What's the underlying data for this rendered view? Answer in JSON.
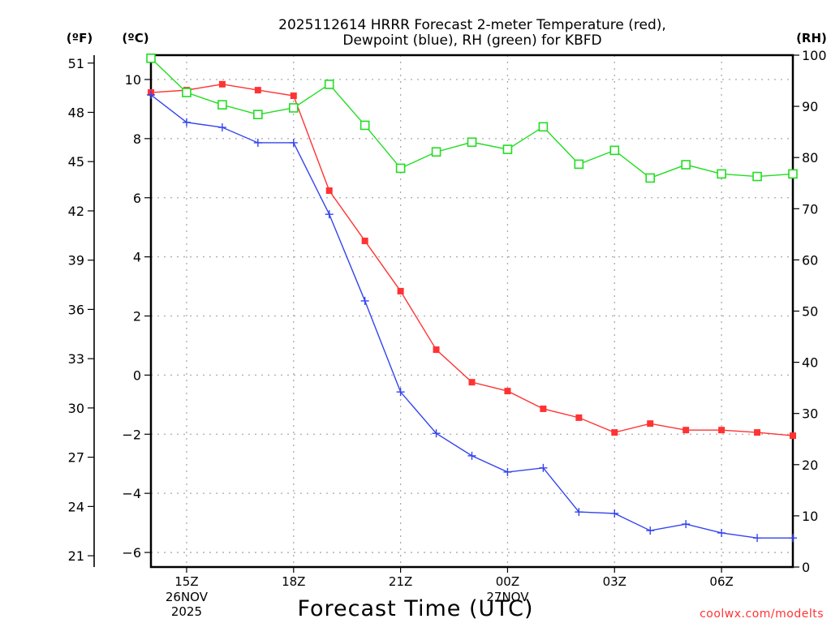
{
  "chart_data": {
    "type": "line",
    "title_line1": "2025112614 HRRR Forecast 2-meter Temperature (red),",
    "title_line2": "Dewpoint (blue), RH (green) for KBFD",
    "xlabel": "Forecast Time (UTC)",
    "credit": "coolwx.com/modelts",
    "units": {
      "fahrenheit": "(ºF)",
      "celsius": "(ºC)",
      "rh": "(RH)"
    },
    "x_hours": [
      "14Z",
      "15Z",
      "16Z",
      "17Z",
      "18Z",
      "19Z",
      "20Z",
      "21Z",
      "22Z",
      "23Z",
      "00Z",
      "01Z",
      "02Z",
      "03Z",
      "04Z",
      "05Z",
      "06Z",
      "07Z",
      "08Z"
    ],
    "x_ticks": [
      {
        "label": "15Z",
        "index": 1,
        "sub": [
          "26NOV",
          "2025"
        ]
      },
      {
        "label": "18Z",
        "index": 4,
        "sub": []
      },
      {
        "label": "21Z",
        "index": 7,
        "sub": []
      },
      {
        "label": "00Z",
        "index": 10,
        "sub": [
          "27NOV"
        ]
      },
      {
        "label": "03Z",
        "index": 13,
        "sub": []
      },
      {
        "label": "06Z",
        "index": 16,
        "sub": []
      }
    ],
    "y_celsius": {
      "range": [
        -6.5,
        10.8
      ],
      "ticks": [
        10,
        8,
        6,
        4,
        2,
        0,
        -2,
        -4,
        -6
      ]
    },
    "y_fahrenheit": {
      "ticks": [
        51,
        48,
        45,
        42,
        39,
        36,
        33,
        30,
        27,
        24,
        21
      ]
    },
    "y_rh": {
      "range": [
        0,
        100
      ],
      "ticks": [
        100,
        90,
        80,
        70,
        60,
        50,
        40,
        30,
        20,
        10,
        0
      ]
    },
    "grid": true,
    "series": [
      {
        "name": "Temperature",
        "axis": "celsius",
        "color": "#ff3333",
        "marker": "filled-square",
        "values": [
          9.56,
          9.64,
          9.84,
          9.64,
          9.45,
          6.24,
          4.54,
          2.84,
          0.86,
          -0.24,
          -0.54,
          -1.14,
          -1.44,
          -1.94,
          -1.64,
          -1.86,
          -1.86,
          -1.94,
          -2.05
        ]
      },
      {
        "name": "Dewpoint",
        "axis": "celsius",
        "color": "#3344ee",
        "marker": "plus",
        "values": [
          9.48,
          8.55,
          8.38,
          7.86,
          7.86,
          5.44,
          2.51,
          -0.57,
          -1.97,
          -2.73,
          -3.28,
          -3.14,
          -4.63,
          -4.68,
          -5.26,
          -5.04,
          -5.34,
          -5.51,
          -5.51
        ]
      },
      {
        "name": "RH",
        "axis": "rh",
        "color": "#22dd22",
        "marker": "open-square",
        "values": [
          99.4,
          92.7,
          90.3,
          88.4,
          89.7,
          94.3,
          86.3,
          77.9,
          81.1,
          83.0,
          81.6,
          86.0,
          78.7,
          81.4,
          76.0,
          78.6,
          76.8,
          76.3,
          76.8
        ]
      }
    ]
  }
}
